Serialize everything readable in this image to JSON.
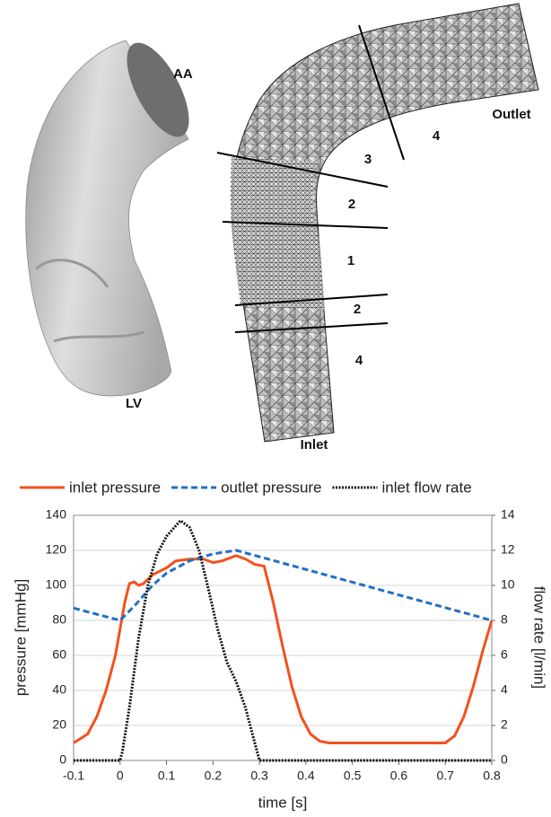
{
  "illustration": {
    "labels": [
      "AA",
      "LV",
      "Outlet",
      "Inlet",
      "4",
      "3",
      "2",
      "1",
      "2",
      "4"
    ]
  },
  "chart_data": {
    "type": "line",
    "xlabel": "time [s]",
    "ylabel": "pressure [mmHg]",
    "y2label": "flow rate [l/min]",
    "xlim": [
      -0.1,
      0.8
    ],
    "xticks": [
      -0.1,
      0,
      0.1,
      0.2,
      0.3,
      0.4,
      0.5,
      0.6,
      0.7,
      0.8
    ],
    "ylim": [
      0,
      140
    ],
    "yticks": [
      0,
      20,
      40,
      60,
      80,
      100,
      120,
      140
    ],
    "y2lim": [
      0,
      14
    ],
    "y2ticks": [
      0,
      2,
      4,
      6,
      8,
      10,
      12,
      14
    ],
    "grid": true,
    "legend": "top",
    "series": [
      {
        "name": "inlet pressure",
        "color": "#f4511e",
        "dash": "solid",
        "x": [
          -0.1,
          -0.07,
          -0.05,
          -0.03,
          -0.01,
          0,
          0.01,
          0.02,
          0.03,
          0.04,
          0.05,
          0.07,
          0.1,
          0.12,
          0.15,
          0.18,
          0.2,
          0.22,
          0.25,
          0.27,
          0.29,
          0.31,
          0.33,
          0.35,
          0.37,
          0.39,
          0.41,
          0.43,
          0.45,
          0.7,
          0.72,
          0.74,
          0.76,
          0.78,
          0.8
        ],
        "values": [
          10,
          15,
          25,
          40,
          60,
          75,
          90,
          101,
          102,
          100,
          101,
          106,
          110,
          114,
          115,
          115,
          113,
          114,
          117,
          115,
          112,
          111,
          90,
          65,
          42,
          25,
          15,
          11,
          10,
          10,
          14,
          25,
          42,
          62,
          80
        ]
      },
      {
        "name": "outlet pressure",
        "color": "#1f6fc5",
        "dash": "dashed",
        "x": [
          -0.1,
          0,
          0.03,
          0.07,
          0.1,
          0.15,
          0.2,
          0.25,
          0.8
        ],
        "values": [
          87,
          80,
          88,
          100,
          107,
          114,
          118,
          120,
          80
        ]
      },
      {
        "name": "inlet flow rate",
        "color": "#111111",
        "dash": "dotted",
        "axis": "y2",
        "x": [
          -0.1,
          0,
          0.005,
          0.02,
          0.04,
          0.06,
          0.08,
          0.1,
          0.13,
          0.15,
          0.17,
          0.19,
          0.21,
          0.23,
          0.25,
          0.27,
          0.29,
          0.3,
          0.8
        ],
        "values": [
          0,
          0,
          0.5,
          3,
          7,
          10,
          11.8,
          12.8,
          13.7,
          13.3,
          12,
          9.8,
          7.5,
          5.6,
          4.5,
          3,
          1,
          0,
          0
        ]
      }
    ]
  }
}
